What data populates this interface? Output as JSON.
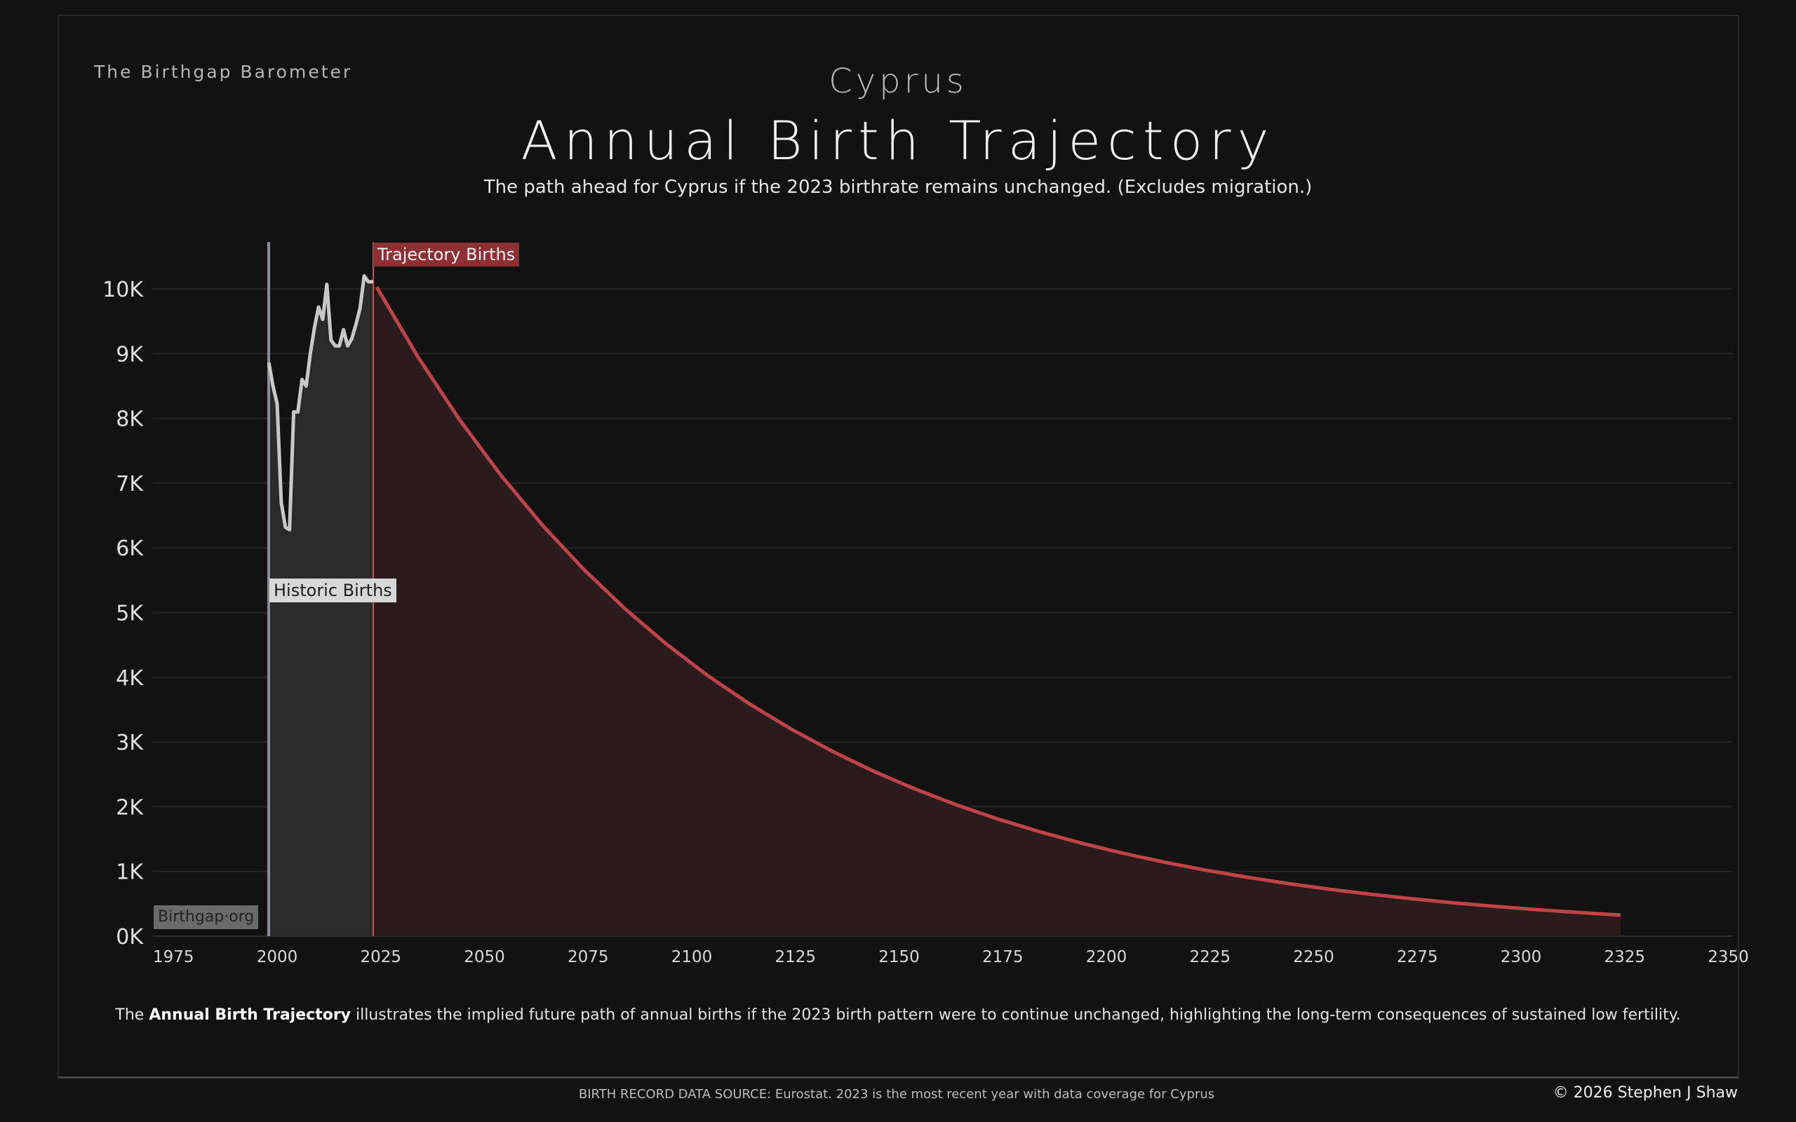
{
  "header": {
    "brand": "The Birthgap Barometer",
    "country": "Cyprus",
    "title": "Annual Birth Trajectory",
    "subtitle": "The path ahead for Cyprus if the 2023 birthrate remains unchanged.  (Excludes migration.)"
  },
  "labels": {
    "trajectory": "Trajectory Births",
    "historic": "Historic Births",
    "watermark": "Birthgap·org"
  },
  "description": {
    "pre": "The ",
    "bold": "Annual Birth Trajectory",
    "post": " illustrates the implied future path of annual births if the 2023 birth pattern were to continue unchanged, highlighting the long-term consequences of sustained low fertility."
  },
  "footer": {
    "source": "BIRTH RECORD DATA SOURCE: Eurostat. 2023 is the most recent year with data coverage for Cyprus",
    "copyright": "© 2026 Stephen J Shaw"
  },
  "colors": {
    "historic_line": "#c8c8c8",
    "historic_fill": "#2a2a2a",
    "trajectory_line": "#c0434a",
    "trajectory_fill": "#2a1c1c",
    "divider": "#d05050",
    "grid": "#262626"
  },
  "chart_data": {
    "type": "line",
    "title": "Annual Birth Trajectory",
    "xlabel": "",
    "ylabel": "",
    "xlim": [
      1970,
      2355
    ],
    "ylim": [
      0,
      10000
    ],
    "x_ticks": [
      1975,
      2000,
      2025,
      2050,
      2075,
      2100,
      2125,
      2150,
      2175,
      2200,
      2225,
      2250,
      2275,
      2300,
      2325,
      2350
    ],
    "y_ticks": [
      {
        "value": 0,
        "label": "0K"
      },
      {
        "value": 1000,
        "label": "1K"
      },
      {
        "value": 2000,
        "label": "2K"
      },
      {
        "value": 3000,
        "label": "3K"
      },
      {
        "value": 4000,
        "label": "4K"
      },
      {
        "value": 5000,
        "label": "5K"
      },
      {
        "value": 6000,
        "label": "6K"
      },
      {
        "value": 7000,
        "label": "7K"
      },
      {
        "value": 8000,
        "label": "8K"
      },
      {
        "value": 9000,
        "label": "9K"
      },
      {
        "value": 10000,
        "label": "10K"
      }
    ],
    "grid": true,
    "series": [
      {
        "name": "Historic Births",
        "x": [
          1998,
          1999,
          2000,
          2001,
          2002,
          2003,
          2004,
          2005,
          2006,
          2007,
          2008,
          2009,
          2010,
          2011,
          2012,
          2013,
          2014,
          2015,
          2016,
          2017,
          2018,
          2019,
          2020,
          2021,
          2022,
          2023
        ],
        "values": [
          8860,
          8500,
          8230,
          6700,
          6320,
          6280,
          8100,
          8100,
          8600,
          8500,
          9000,
          9400,
          9720,
          9530,
          10070,
          9210,
          9120,
          9120,
          9370,
          9120,
          9230,
          9450,
          9700,
          10200,
          10110,
          10110
        ]
      },
      {
        "name": "Trajectory Births",
        "x": [
          2024,
          2034,
          2044,
          2054,
          2064,
          2074,
          2084,
          2094,
          2104,
          2114,
          2124,
          2134,
          2144,
          2154,
          2164,
          2174,
          2184,
          2194,
          2204,
          2214,
          2224,
          2234,
          2244,
          2254,
          2264,
          2274,
          2284,
          2294,
          2304,
          2314,
          2324
        ],
        "values": [
          10030,
          8947,
          7981,
          7119,
          6350,
          5664,
          5053,
          4507,
          4020,
          3586,
          3199,
          2854,
          2545,
          2271,
          2025,
          1807,
          1612,
          1438,
          1282,
          1144,
          1020,
          910,
          812,
          724,
          646,
          576,
          514,
          459,
          409,
          365,
          326
        ]
      }
    ]
  }
}
